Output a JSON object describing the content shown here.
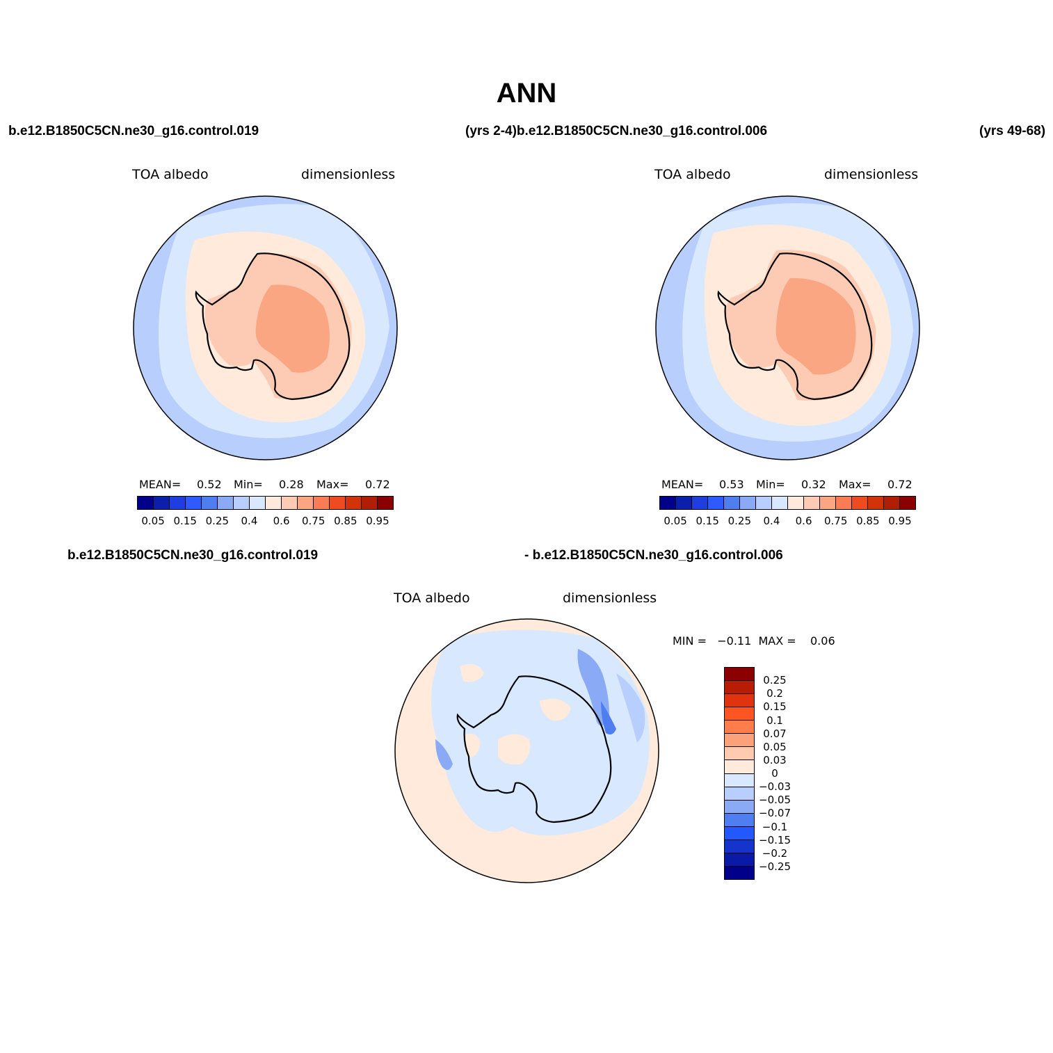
{
  "title": "ANN",
  "top_case_left": "b.e12.B1850C5CN.ne30_g16.control.019",
  "top_case_mid": "(yrs 2-4)b.e12.B1850C5CN.ne30_g16.control.006",
  "top_case_right": "(yrs 49-68)",
  "diff_case_left": "b.e12.B1850C5CN.ne30_g16.control.019",
  "diff_case_right": "- b.e12.B1850C5CN.ne30_g16.control.006",
  "panels": [
    {
      "variable": "TOA albedo",
      "units": "dimensionless",
      "mean_label": "MEAN=",
      "mean": "0.52",
      "min_label": "Min=",
      "min": "0.28",
      "max_label": "Max=",
      "max": "0.72"
    },
    {
      "variable": "TOA albedo",
      "units": "dimensionless",
      "mean_label": "MEAN=",
      "mean": "0.53",
      "min_label": "Min=",
      "min": "0.32",
      "max_label": "Max=",
      "max": "0.72"
    },
    {
      "variable": "TOA albedo",
      "units": "dimensionless",
      "minmax_text": "MIN =   −0.11  MAX =    0.06"
    }
  ],
  "abs_colorbar": {
    "colors": [
      "#00008b",
      "#0a20aa",
      "#1f3ee0",
      "#2e5bff",
      "#4f7ef0",
      "#8aaaf5",
      "#b8cffd",
      "#d8e9ff",
      "#ffeadb",
      "#fdcbb4",
      "#fba683",
      "#f97c55",
      "#f04a21",
      "#d23309",
      "#b01e05",
      "#8b0000"
    ],
    "tick_labels": [
      "0.05",
      "0.15",
      "0.25",
      "0.4",
      "0.6",
      "0.75",
      "0.85",
      "0.95"
    ]
  },
  "diff_colorbar": {
    "colors_top_to_bottom": [
      "#8b0000",
      "#b81c05",
      "#e03310",
      "#ff5522",
      "#ff7d4a",
      "#fca27a",
      "#ffcbb0",
      "#ffeadb",
      "#d8e9ff",
      "#b8cffd",
      "#8aaaf5",
      "#4f7ef0",
      "#2357ff",
      "#1434cc",
      "#0a1aa8",
      "#00008b"
    ],
    "tick_labels": [
      "0.25",
      "0.2",
      "0.15",
      "0.1",
      "0.07",
      "0.05",
      "0.03",
      "0",
      "−0.03",
      "−0.05",
      "−0.07",
      "−0.1",
      "−0.15",
      "−0.2",
      "−0.25"
    ]
  },
  "map_colors": {
    "outer": "#b8cffd",
    "light_blue": "#d8e9ff",
    "cream": "#ffeadb",
    "peach": "#fdcbb4",
    "salmon": "#fba683",
    "mid_blue": "#8aaaf5",
    "blue": "#4f7ef0"
  }
}
